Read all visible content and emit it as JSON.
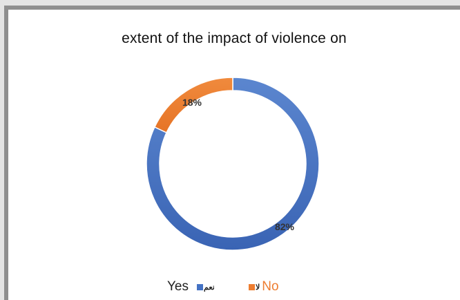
{
  "chart_data": {
    "type": "pie",
    "title": "extent of the impact of violence on",
    "categories": [
      "نعم",
      "لا"
    ],
    "values": [
      82,
      18
    ],
    "data_labels": [
      "82%",
      "18%"
    ],
    "colors": [
      "#4472C4",
      "#ED7D31"
    ],
    "donut": true,
    "legend_position": "bottom"
  },
  "legend": {
    "yes_native": "نعم",
    "yes_english": "Yes",
    "no_native": "لا",
    "no_english": "No"
  }
}
